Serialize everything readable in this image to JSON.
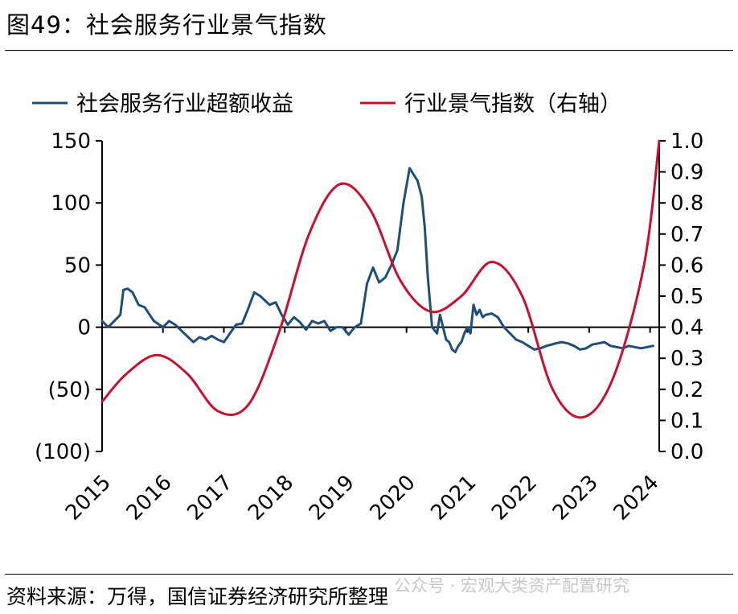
{
  "header": {
    "title": "图49：社会服务行业景气指数"
  },
  "footer": {
    "source": "资料来源：万得，国信证券经济研究所整理",
    "watermark": "公众号 · 宏观大类资产配置研究"
  },
  "colors": {
    "excess_return": "#1f4e79",
    "prosperity_index": "#c8102e"
  },
  "chart_data": {
    "type": "line",
    "title": "",
    "x_ticks": [
      "2015",
      "2016",
      "2017",
      "2018",
      "2019",
      "2020",
      "2021",
      "2022",
      "2023",
      "2024"
    ],
    "y_left": {
      "ticks": [
        "150",
        "100",
        "50",
        "0",
        "(50)",
        "(100)"
      ],
      "range": [
        -100,
        150
      ]
    },
    "y_right": {
      "ticks": [
        "1.0",
        "0.9",
        "0.8",
        "0.7",
        "0.6",
        "0.5",
        "0.4",
        "0.3",
        "0.2",
        "0.1",
        "0.0"
      ],
      "range": [
        0.0,
        1.0
      ],
      "label": "右轴"
    },
    "legend_position": "top",
    "series": [
      {
        "name": "社会服务行业超额收益",
        "axis": "left",
        "color": "#1f4e79",
        "x": [
          2015.0,
          2015.1,
          2015.2,
          2015.3,
          2015.35,
          2015.42,
          2015.5,
          2015.6,
          2015.7,
          2015.85,
          2016.0,
          2016.1,
          2016.2,
          2016.35,
          2016.5,
          2016.6,
          2016.7,
          2016.8,
          2016.9,
          2017.0,
          2017.1,
          2017.2,
          2017.3,
          2017.4,
          2017.5,
          2017.6,
          2017.75,
          2017.85,
          2017.95,
          2018.05,
          2018.15,
          2018.25,
          2018.35,
          2018.45,
          2018.55,
          2018.65,
          2018.75,
          2018.85,
          2018.95,
          2019.05,
          2019.15,
          2019.25,
          2019.35,
          2019.45,
          2019.55,
          2019.65,
          2019.75,
          2019.85,
          2019.95,
          2020.05,
          2020.1,
          2020.18,
          2020.25,
          2020.3,
          2020.35,
          2020.42,
          2020.5,
          2020.55,
          2020.6,
          2020.65,
          2020.7,
          2020.75,
          2020.8,
          2020.85,
          2020.9,
          2020.95,
          2021.0,
          2021.05,
          2021.1,
          2021.15,
          2021.2,
          2021.25,
          2021.3,
          2021.4,
          2021.5,
          2021.6,
          2021.7,
          2021.8,
          2021.9,
          2022.0,
          2022.1,
          2022.2,
          2022.3,
          2022.38,
          2022.45,
          2022.55,
          2022.65,
          2022.75,
          2022.85,
          2022.95,
          2023.05,
          2023.15,
          2023.25,
          2023.35,
          2023.45,
          2023.55,
          2023.65,
          2023.75,
          2023.85,
          2023.95,
          2024.05
        ],
        "y": [
          5,
          0,
          5,
          10,
          30,
          31,
          28,
          18,
          16,
          5,
          0,
          5,
          2,
          -5,
          -12,
          -8,
          -10,
          -7,
          -10,
          -12,
          -5,
          2,
          3,
          15,
          28,
          25,
          18,
          20,
          10,
          2,
          8,
          4,
          -2,
          5,
          3,
          5,
          -3,
          0,
          0,
          -6,
          0,
          3,
          35,
          48,
          36,
          40,
          50,
          62,
          100,
          128,
          124,
          118,
          105,
          80,
          40,
          0,
          -5,
          10,
          0,
          -10,
          -12,
          -18,
          -20,
          -15,
          -12,
          -5,
          0,
          -5,
          18,
          10,
          14,
          8,
          10,
          11,
          8,
          0,
          -5,
          -10,
          -12,
          -15,
          -18,
          -17,
          -15,
          -14,
          -13,
          -12,
          -13,
          -15,
          -18,
          -17,
          -14,
          -13,
          -12,
          -15,
          -16,
          -17,
          -15,
          -16,
          -17,
          -16,
          -15
        ]
      },
      {
        "name": "行业景气指数（右轴）",
        "axis": "right",
        "color": "#c8102e",
        "x": [
          2015.0,
          2015.4,
          2015.9,
          2016.4,
          2016.9,
          2017.4,
          2017.9,
          2018.4,
          2018.9,
          2019.4,
          2019.9,
          2020.4,
          2020.9,
          2021.4,
          2021.9,
          2022.4,
          2022.9,
          2023.4,
          2023.9,
          2024.15
        ],
        "y": [
          0.16,
          0.25,
          0.31,
          0.25,
          0.13,
          0.15,
          0.38,
          0.7,
          0.86,
          0.78,
          0.55,
          0.45,
          0.5,
          0.61,
          0.5,
          0.2,
          0.11,
          0.24,
          0.6,
          1.0
        ]
      }
    ]
  }
}
